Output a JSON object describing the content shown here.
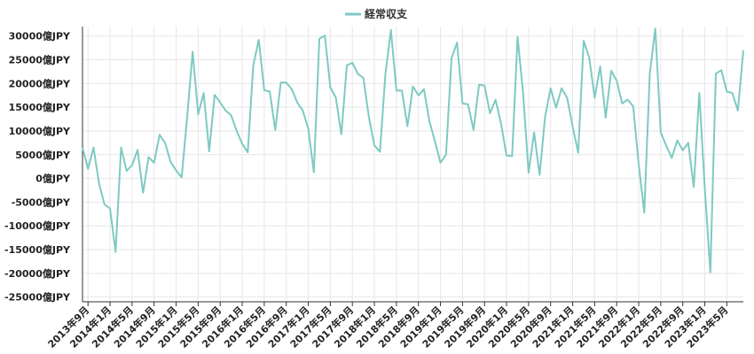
{
  "chart_data": {
    "type": "line",
    "legend": {
      "position": "top-center"
    },
    "series": [
      {
        "name": "経常収支",
        "color": "#7ecac2",
        "start": "2013-08",
        "values": [
          6500,
          2000,
          6500,
          -1000,
          -5500,
          -6300,
          -15500,
          6500,
          1600,
          2800,
          6000,
          -3000,
          4500,
          3300,
          9200,
          7500,
          3500,
          1700,
          200,
          13000,
          26700,
          13500,
          18000,
          5700,
          17600,
          16000,
          14300,
          13300,
          10000,
          7300,
          5500,
          23800,
          29200,
          18600,
          18300,
          10200,
          20200,
          20200,
          18800,
          16000,
          14300,
          10500,
          1300,
          29400,
          30100,
          19200,
          17000,
          9300,
          23800,
          24400,
          22000,
          21200,
          13000,
          7000,
          5600,
          22000,
          31300,
          18500,
          18500,
          11000,
          19400,
          17500,
          18800,
          12000,
          7800,
          3300,
          5000,
          25300,
          28600,
          15800,
          15600,
          10200,
          19700,
          19600,
          13700,
          16600,
          11600,
          4800,
          4700,
          29800,
          18000,
          1200,
          9700,
          700,
          13000,
          19000,
          14900,
          19000,
          17000,
          11000,
          5400,
          29000,
          25500,
          17000,
          23600,
          12800,
          22700,
          20600,
          15800,
          16600,
          15200,
          3000,
          -7200,
          22000,
          31600,
          9700,
          6900,
          4300,
          8000,
          5900,
          7500,
          -1800,
          18000,
          -2000,
          -19800,
          22100,
          22800,
          18300,
          18000,
          14300,
          27000
        ]
      }
    ],
    "y_ticks": [
      "30000億JPY",
      "25000億JPY",
      "20000億JPY",
      "15000億JPY",
      "10000億JPY",
      "5000億JPY",
      "0億JPY",
      "-5000億JPY",
      "-10000億JPY",
      "-15000億JPY",
      "-20000億JPY",
      "-25000億JPY"
    ],
    "y_tick_values": [
      30000,
      25000,
      20000,
      15000,
      10000,
      5000,
      0,
      -5000,
      -10000,
      -15000,
      -20000,
      -25000
    ],
    "ylim": [
      -26000,
      32000
    ],
    "x_ticks": [
      "2013年9月",
      "2014年1月",
      "2014年5月",
      "2014年9月",
      "2015年1月",
      "2015年5月",
      "2015年9月",
      "2016年1月",
      "2016年5月",
      "2016年9月",
      "2017年1月",
      "2017年5月",
      "2017年9月",
      "2018年1月",
      "2018年5月",
      "2018年9月",
      "2019年1月",
      "2019年5月",
      "2019年9月",
      "2020年1月",
      "2020年5月",
      "2020年9月",
      "2021年1月",
      "2021年5月",
      "2021年9月",
      "2022年1月",
      "2022年5月",
      "2022年9月",
      "2023年1月",
      "2023年5月"
    ],
    "x_tick_first": "2013-09",
    "x_tick_step_months": 4,
    "grid": true
  }
}
